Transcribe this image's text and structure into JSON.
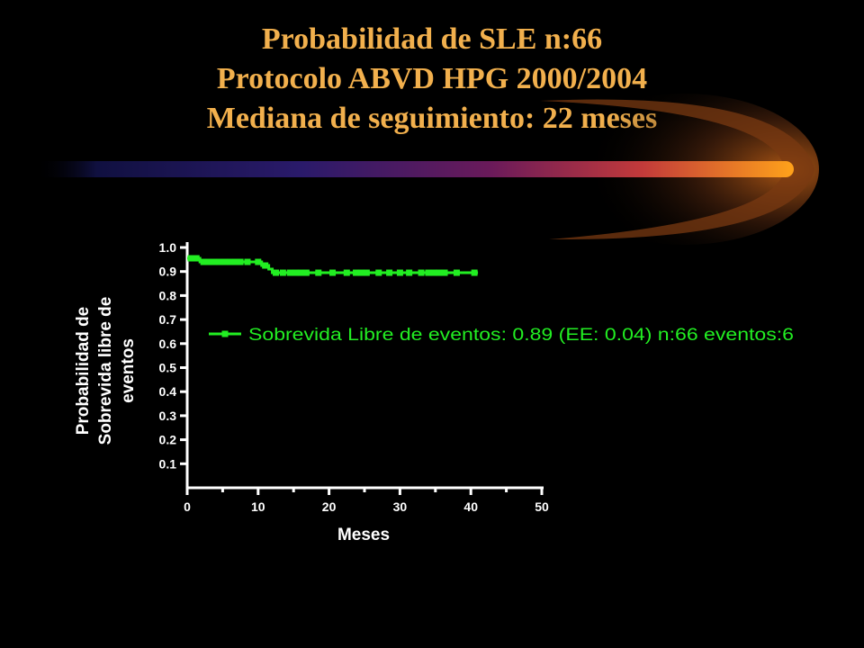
{
  "slide": {
    "background": "#000000",
    "title_color": "#f2b04d",
    "title_lines": [
      "Probabilidad de SLE n:66",
      "Protocolo  ABVD HPG 2000/2004",
      "Mediana de seguimiento:  22 meses"
    ]
  },
  "chart_data": {
    "type": "line",
    "xlabel": "Meses",
    "ylabel_lines": [
      "Probabilidad de",
      "Sobrevida libre de",
      "eventos"
    ],
    "xlim": [
      0,
      50
    ],
    "ylim": [
      0,
      1.0
    ],
    "x_ticks": [
      "0",
      "10",
      "20",
      "30",
      "40",
      "50"
    ],
    "y_ticks": [
      "0.1",
      "0.2",
      "0.3",
      "0.4",
      "0.5",
      "0.6",
      "0.7",
      "0.8",
      "0.9",
      "1.0"
    ],
    "grid": false,
    "legend_position": "center-right",
    "series": [
      {
        "name": "Sobrevida Libre de eventos: 0.89 (EE: 0.04) n:66 eventos:6",
        "color": "#22ee22",
        "step": true,
        "x": [
          0,
          1,
          1.8,
          9.5,
          10.5,
          11.5,
          12,
          41
        ],
        "y": [
          0.955,
          0.955,
          0.94,
          0.94,
          0.925,
          0.91,
          0.895,
          0.895
        ],
        "censor_x": [
          0.5,
          1.3,
          2.3,
          3,
          3.8,
          4.5,
          5.3,
          6,
          6.8,
          7.5,
          8.5,
          10,
          11,
          12.5,
          13.5,
          14.5,
          15.3,
          16,
          16.8,
          18.5,
          20.5,
          22.5,
          23.8,
          24.5,
          25.3,
          27,
          28.5,
          30,
          31.3,
          33,
          34,
          34.8,
          35.5,
          36.3,
          38,
          40.5
        ]
      }
    ]
  }
}
